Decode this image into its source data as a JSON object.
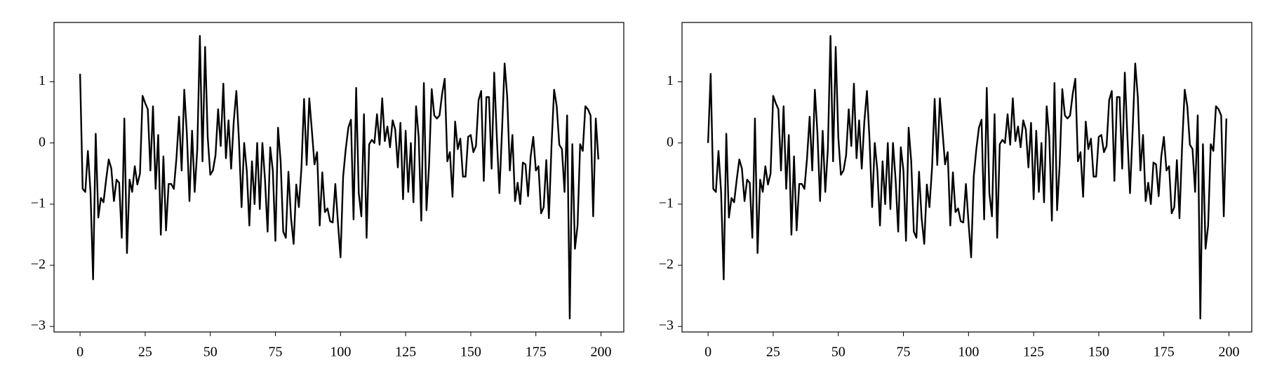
{
  "chart_data": [
    {
      "type": "line",
      "color": "#000000",
      "values": [
        1.13,
        -0.75,
        -0.8,
        -0.13,
        -0.8,
        -2.23,
        0.15,
        -1.22,
        -0.9,
        -0.97,
        -0.6,
        -0.27,
        -0.42,
        -0.95,
        -0.6,
        -0.65,
        -1.55,
        0.4,
        -1.8,
        -0.6,
        -0.8,
        -0.38,
        -0.68,
        -0.5,
        0.77,
        0.65,
        0.55,
        -0.45,
        0.6,
        -0.75,
        0.13,
        -1.5,
        -0.22,
        -1.43,
        -0.67,
        -0.67,
        -0.75,
        -0.25,
        0.43,
        -0.45,
        0.87,
        0.15,
        -0.95,
        0.2,
        -0.8,
        -0.1,
        1.75,
        -0.3,
        1.57,
        0.1,
        -0.52,
        -0.45,
        -0.2,
        0.55,
        -0.05,
        0.97,
        -0.25,
        0.37,
        -0.42,
        0.35,
        0.85,
        0.05,
        -1.05,
        0.0,
        -0.45,
        -1.35,
        -0.3,
        -1.0,
        0.0,
        -1.08,
        0.0,
        -0.6,
        -1.45,
        -0.07,
        -0.45,
        -1.6,
        0.25,
        -0.3,
        -1.45,
        -1.55,
        -0.47,
        -1.23,
        -1.65,
        -0.68,
        -1.05,
        -0.4,
        0.72,
        -0.36,
        0.73,
        0.2,
        -0.35,
        -0.15,
        -1.35,
        -0.48,
        -1.13,
        -1.07,
        -1.28,
        -1.3,
        -0.67,
        -1.3,
        -1.87,
        -0.55,
        -0.1,
        0.25,
        0.38,
        -1.25,
        0.9,
        -0.82,
        -1.2,
        0.47,
        -1.55,
        -0.02,
        0.05,
        0.0,
        0.47,
        -0.03,
        0.73,
        0.03,
        0.27,
        -0.07,
        0.37,
        0.22,
        -0.4,
        0.33,
        -0.92,
        0.2,
        -0.8,
        0.0,
        -0.97,
        0.6,
        0.1,
        -1.27,
        0.98,
        -1.1,
        -0.35,
        0.88,
        0.45,
        0.4,
        0.45,
        0.8,
        1.05,
        -0.3,
        -0.15,
        -0.88,
        0.35,
        -0.1,
        0.07,
        -0.55,
        -0.55,
        0.1,
        0.13,
        -0.15,
        -0.05,
        0.7,
        0.85,
        -0.62,
        0.75,
        0.75,
        -0.42,
        1.15,
        0.1,
        -0.82,
        0.2,
        1.3,
        0.75,
        -0.45,
        0.13,
        -0.95,
        -0.65,
        -1.0,
        -0.32,
        -0.35,
        -0.87,
        -0.22,
        0.1,
        -0.45,
        -0.38,
        -1.15,
        -1.05,
        -0.28,
        -1.23,
        -0.05,
        0.87,
        0.6,
        -0.03,
        -0.1,
        -0.8,
        0.45,
        -2.87,
        -0.02,
        -1.73,
        -1.35,
        -0.02,
        -0.13,
        0.6,
        0.55,
        0.45,
        -1.2,
        0.4,
        -0.27
      ],
      "xlim": [
        -10,
        208.75
      ],
      "xticks": [
        0,
        25,
        50,
        75,
        100,
        125,
        150,
        175,
        200
      ],
      "ylim": [
        -3.09,
        1.97
      ],
      "yticks": [
        {
          "value": -3,
          "label": "−3"
        },
        {
          "value": -2,
          "label": "−2"
        },
        {
          "value": -1,
          "label": "−1"
        },
        0,
        1
      ]
    },
    {
      "type": "line",
      "color": "#000000",
      "values": [
        0.0,
        1.13,
        -0.75,
        -0.8,
        -0.13,
        -0.8,
        -2.23,
        0.15,
        -1.22,
        -0.9,
        -0.97,
        -0.6,
        -0.27,
        -0.42,
        -0.95,
        -0.6,
        -0.65,
        -1.55,
        0.4,
        -1.8,
        -0.6,
        -0.8,
        -0.38,
        -0.68,
        -0.5,
        0.77,
        0.65,
        0.55,
        -0.45,
        0.6,
        -0.75,
        0.13,
        -1.5,
        -0.22,
        -1.43,
        -0.67,
        -0.67,
        -0.75,
        -0.25,
        0.43,
        -0.45,
        0.87,
        0.15,
        -0.95,
        0.2,
        -0.8,
        -0.1,
        1.75,
        -0.3,
        1.57,
        0.1,
        -0.52,
        -0.45,
        -0.2,
        0.55,
        -0.05,
        0.97,
        -0.25,
        0.37,
        -0.42,
        0.35,
        0.85,
        0.05,
        -1.05,
        0.0,
        -0.45,
        -1.35,
        -0.3,
        -1.0,
        0.0,
        -1.08,
        0.0,
        -0.6,
        -1.45,
        -0.07,
        -0.45,
        -1.6,
        0.25,
        -0.3,
        -1.45,
        -1.55,
        -0.47,
        -1.23,
        -1.65,
        -0.68,
        -1.05,
        -0.4,
        0.72,
        -0.36,
        0.73,
        0.2,
        -0.35,
        -0.15,
        -1.35,
        -0.48,
        -1.13,
        -1.07,
        -1.28,
        -1.3,
        -0.67,
        -1.3,
        -1.87,
        -0.55,
        -0.1,
        0.25,
        0.38,
        -1.25,
        0.9,
        -0.82,
        -1.2,
        0.47,
        -1.55,
        -0.02,
        0.05,
        0.0,
        0.47,
        -0.03,
        0.73,
        0.03,
        0.27,
        -0.07,
        0.37,
        0.22,
        -0.4,
        0.33,
        -0.92,
        0.2,
        -0.8,
        0.0,
        -0.97,
        0.6,
        0.1,
        -1.27,
        0.98,
        -1.1,
        -0.35,
        0.88,
        0.45,
        0.4,
        0.45,
        0.8,
        1.05,
        -0.3,
        -0.15,
        -0.88,
        0.35,
        -0.1,
        0.07,
        -0.55,
        -0.55,
        0.1,
        0.13,
        -0.15,
        -0.05,
        0.7,
        0.85,
        -0.62,
        0.75,
        0.75,
        -0.42,
        1.15,
        0.1,
        -0.82,
        0.2,
        1.3,
        0.75,
        -0.45,
        0.13,
        -0.95,
        -0.65,
        -1.0,
        -0.32,
        -0.35,
        -0.87,
        -0.22,
        0.1,
        -0.45,
        -0.38,
        -1.15,
        -1.05,
        -0.28,
        -1.23,
        -0.05,
        0.87,
        0.6,
        -0.03,
        -0.1,
        -0.8,
        0.45,
        -2.87,
        -0.02,
        -1.73,
        -1.35,
        -0.02,
        -0.13,
        0.6,
        0.55,
        0.45,
        -1.2,
        0.4
      ],
      "xlim": [
        -10,
        208.75
      ],
      "xticks": [
        0,
        25,
        50,
        75,
        100,
        125,
        150,
        175,
        200
      ],
      "ylim": [
        -3.09,
        1.97
      ],
      "yticks": [
        {
          "value": -3,
          "label": "−3"
        },
        {
          "value": -2,
          "label": "−2"
        },
        {
          "value": -1,
          "label": "−1"
        },
        0,
        1
      ]
    }
  ]
}
